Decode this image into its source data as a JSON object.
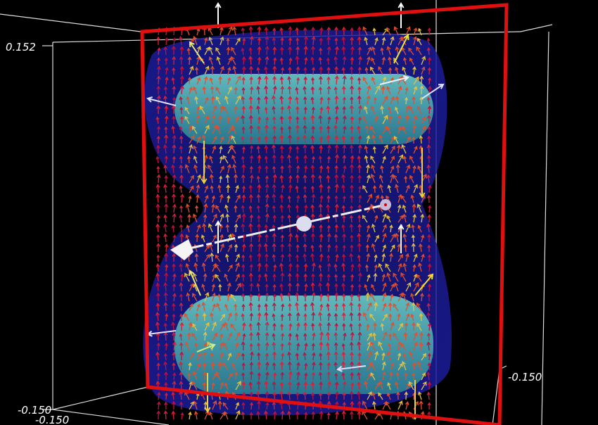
{
  "axis_labels": {
    "top_left": "0.152",
    "bottom_left_front": "-0.150",
    "bottom_left_back": "-0.150",
    "bottom_right": "-0.150"
  }
}
